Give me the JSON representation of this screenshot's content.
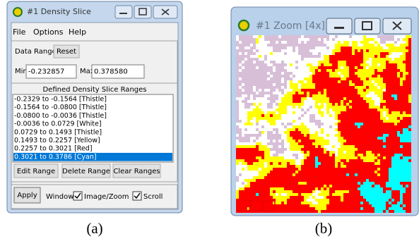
{
  "window_a": {
    "title": "#1 Density Slice",
    "menu": [
      "File",
      "Options",
      "Help"
    ],
    "data_range_label": "Data Range",
    "reset_button": "Reset",
    "min_label": "Min",
    "min_value": "-0.232857",
    "max_label": "Max",
    "max_value": "0.378580",
    "ranges_title": "Defined Density Slice Ranges",
    "ranges": [
      "-0.2329 to -0.1564 [Thistle]",
      "-0.1564 to -0.0800 [Thistle]",
      "-0.0800 to -0.0036 [Thistle]",
      "-0.0036 to 0.0729 [White]",
      "0.0729 to 0.1493 [Thistle]",
      "0.1493 to 0.2257 [Yellow]",
      "0.2257 to 0.3021 [Red]",
      "0.3021 to 0.3786 [Cyan]"
    ],
    "selected_range": 7,
    "range_buttons": [
      "Edit Range",
      "Delete Range",
      "Clear Ranges"
    ],
    "apply_button": "Apply",
    "window_label": "Window",
    "checkboxes": [
      "Image/Zoom",
      "Scroll"
    ]
  },
  "window_b": {
    "title": "#1 Zoom [4x]"
  },
  "captions": [
    "(a)",
    "(b)"
  ]
}
